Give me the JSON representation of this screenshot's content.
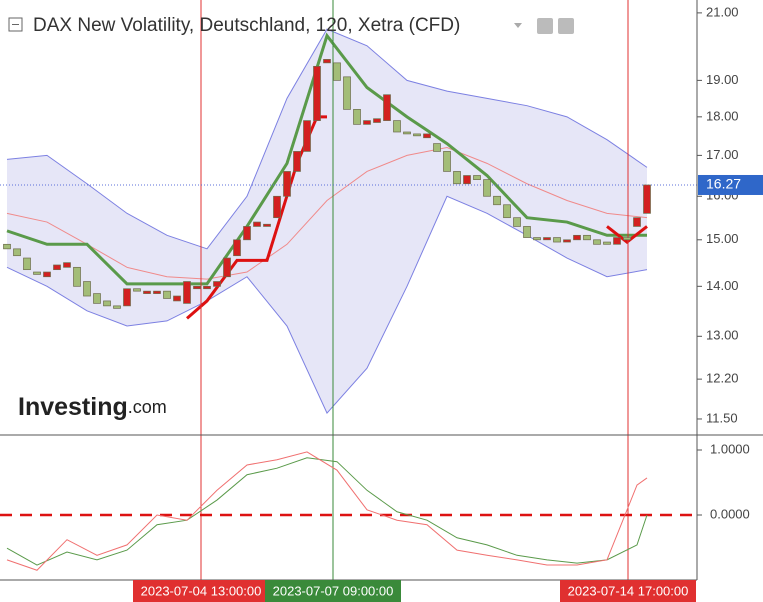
{
  "chart_data": [
    {
      "type": "candlestick",
      "title": "DAX New Volatility, Deutschland, 120, Xetra (CFD)",
      "log": true,
      "ylim": [
        11.23,
        21.31
      ],
      "yticks": [
        {
          "value": 21,
          "label": "21.00"
        },
        {
          "value": 19,
          "label": "19.00"
        },
        {
          "value": 18,
          "label": "18.00"
        },
        {
          "value": 17,
          "label": "17.00"
        },
        {
          "value": 16,
          "label": "16.00"
        },
        {
          "value": 15,
          "label": "15.00"
        },
        {
          "value": 14,
          "label": "14.00"
        },
        {
          "value": 13,
          "label": "13.00"
        },
        {
          "value": 12.2,
          "label": "12.20"
        },
        {
          "value": 11.5,
          "label": "11.50"
        }
      ],
      "up_color": "#d32020",
      "down_color": "#a3bd78",
      "open": [
        14.9,
        14.8,
        14.6,
        14.3,
        14.2,
        14.35,
        14.4,
        14.4,
        14.1,
        13.85,
        13.7,
        13.6,
        13.6,
        13.95,
        13.85,
        13.85,
        13.9,
        13.7,
        13.65,
        13.95,
        13.95,
        14.0,
        14.2,
        14.65,
        15.0,
        15.3,
        15.3,
        15.5,
        16.0,
        16.6,
        17.1,
        17.9,
        19.5,
        19.5,
        19.1,
        18.2,
        17.8,
        17.85,
        17.9,
        17.9,
        17.6,
        17.55,
        17.45,
        17.3,
        17.1,
        16.6,
        16.3,
        16.5,
        16.4,
        16.0,
        15.8,
        15.5,
        15.3,
        15.05,
        15.0,
        15.05,
        14.95,
        15.0,
        15.1,
        15.0,
        14.95,
        14.9,
        15.05,
        15.3,
        15.6
      ],
      "close": [
        14.8,
        14.65,
        14.35,
        14.25,
        14.3,
        14.45,
        14.5,
        14.0,
        13.8,
        13.65,
        13.6,
        13.55,
        13.95,
        13.9,
        13.9,
        13.9,
        13.75,
        13.8,
        14.1,
        14.0,
        14.0,
        14.1,
        14.6,
        15.0,
        15.3,
        15.4,
        15.35,
        16.0,
        16.6,
        17.1,
        17.9,
        19.4,
        19.6,
        19.0,
        18.2,
        17.8,
        17.9,
        17.95,
        18.6,
        17.6,
        17.55,
        17.5,
        17.55,
        17.1,
        16.6,
        16.3,
        16.5,
        16.4,
        16.0,
        15.8,
        15.5,
        15.3,
        15.05,
        15.0,
        15.05,
        14.95,
        15.0,
        15.1,
        15.0,
        14.9,
        14.9,
        15.05,
        15.0,
        15.5,
        16.27
      ],
      "last_price": {
        "value": 16.27,
        "label": "16.27"
      },
      "bands": {
        "x": [
          0,
          4,
          8,
          12,
          16,
          20,
          24,
          28,
          32,
          36,
          40,
          44,
          48,
          52,
          56,
          60,
          64
        ],
        "color": "#7c80e2",
        "fill": "#e6e6f7",
        "upper": [
          16.9,
          17.0,
          16.3,
          15.6,
          15.1,
          14.8,
          16.0,
          18.5,
          20.5,
          20.0,
          19.0,
          18.7,
          18.5,
          18.3,
          18.0,
          17.4,
          16.7
        ],
        "lower": [
          14.4,
          14.0,
          13.5,
          13.2,
          13.3,
          13.7,
          14.2,
          13.2,
          11.6,
          12.4,
          14.0,
          16.0,
          15.6,
          15.1,
          14.6,
          14.2,
          14.35
        ]
      },
      "lines": [
        {
          "color": "#f08a8a",
          "x": [
            0,
            4,
            8,
            12,
            16,
            20,
            24,
            28,
            32,
            36,
            40,
            44,
            48,
            52,
            56,
            60,
            64
          ],
          "values": [
            15.6,
            15.4,
            14.9,
            14.4,
            14.2,
            14.15,
            14.3,
            14.9,
            15.9,
            16.6,
            17.0,
            17.2,
            16.8,
            16.3,
            15.9,
            15.6,
            15.5
          ]
        },
        {
          "color": "#5a9a4a",
          "x": [
            0,
            4,
            8,
            12,
            16,
            20,
            24,
            28,
            32,
            36,
            40,
            44,
            48,
            52,
            56,
            60,
            64
          ],
          "values": [
            15.2,
            14.9,
            14.9,
            14.05,
            14.05,
            14.05,
            15.3,
            16.8,
            20.3,
            18.8,
            18.0,
            17.3,
            16.5,
            15.5,
            15.4,
            15.1,
            15.1
          ]
        },
        {
          "color": "#dd1111",
          "x": [
            18,
            20,
            23,
            26,
            29,
            31,
            32,
            33,
            60,
            62,
            64
          ],
          "values": [
            13.35,
            13.7,
            14.55,
            14.55,
            16.8,
            18.0,
            18.0,
            null,
            15.3,
            14.95,
            15.3
          ]
        }
      ],
      "markers": [
        {
          "x": 19.4,
          "label": "2023-07-04 13:00:00",
          "color": "#e03030"
        },
        {
          "x": 32.6,
          "label": "2023-07-07 09:00:00",
          "color": "#3a8a3a"
        },
        {
          "x": 62.1,
          "label": "2023-07-14 17:00:00",
          "color": "#e03030"
        }
      ],
      "logo": {
        "name": "Investing",
        "suffix": ".com"
      }
    },
    {
      "type": "line",
      "ylim": [
        -1.0,
        1.2
      ],
      "yticks": [
        {
          "value": 1,
          "label": "1.0000"
        },
        {
          "value": 0,
          "label": "0.0000"
        }
      ],
      "zero_line_color": "#dd1111",
      "x": [
        0,
        3,
        6,
        9,
        12,
        15,
        18,
        21,
        24,
        27,
        30,
        33,
        36,
        39,
        42,
        45,
        48,
        51,
        54,
        57,
        60,
        63,
        64
      ],
      "series": [
        {
          "color": "#5a9a4a",
          "values": [
            -0.51,
            -0.77,
            -0.57,
            -0.69,
            -0.54,
            -0.15,
            -0.08,
            0.23,
            0.62,
            0.72,
            0.88,
            0.82,
            0.38,
            0.05,
            -0.08,
            -0.35,
            -0.46,
            -0.62,
            -0.69,
            -0.74,
            -0.69,
            -0.46,
            0.0
          ]
        },
        {
          "color": "#f07070",
          "values": [
            -0.69,
            -0.85,
            -0.38,
            -0.62,
            -0.46,
            0,
            -0.08,
            0.38,
            0.77,
            0.85,
            0.97,
            0.69,
            0.08,
            -0.08,
            -0.15,
            -0.54,
            -0.62,
            -0.69,
            -0.77,
            -0.77,
            -0.69,
            0.46,
            0.57
          ]
        }
      ]
    }
  ]
}
